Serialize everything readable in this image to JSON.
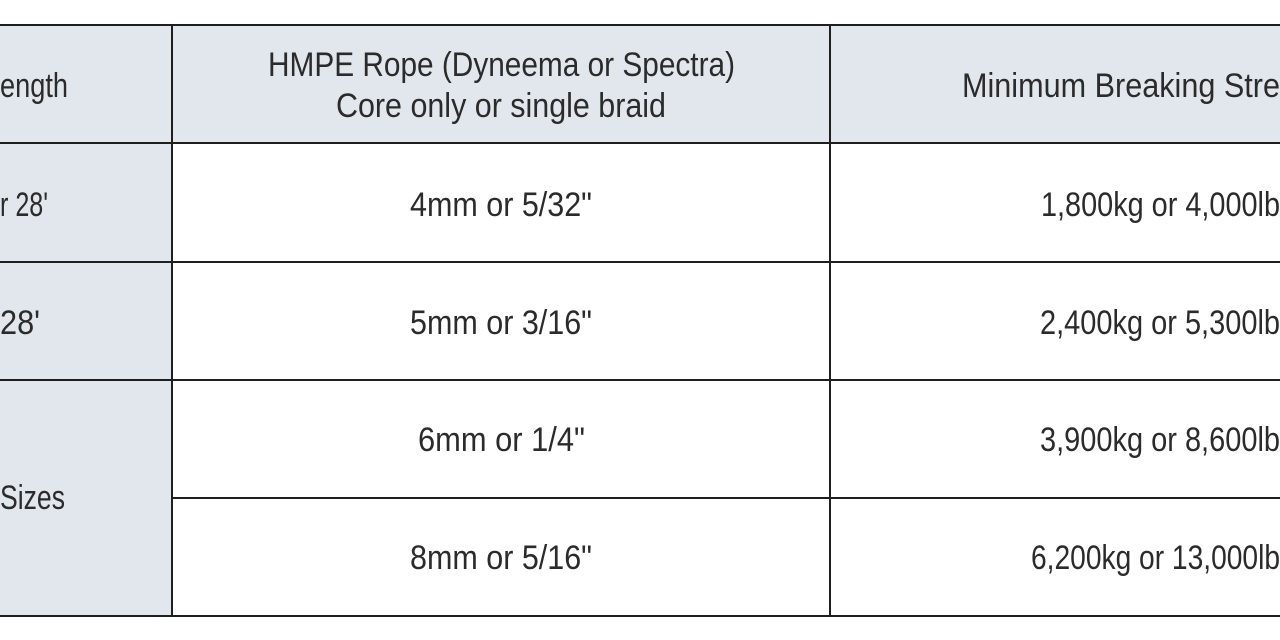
{
  "table": {
    "header": [
      "ength",
      [
        "HMPE Rope (Dyneema or Spectra)",
        "Core only or single braid"
      ],
      "Minimum Breaking Stre"
    ],
    "rows": [
      [
        "r 28'",
        "4mm or 5/32\"",
        "1,800kg or 4,000lb"
      ],
      [
        "28'",
        "5mm or 3/16\"",
        "2,400kg or 5,300lb"
      ],
      [
        "Sizes",
        "6mm or 1/4\"",
        "3,900kg or 8,600lb"
      ],
      [
        "8mm or 5/16\"",
        "6,200kg or 13,000lb"
      ]
    ]
  }
}
